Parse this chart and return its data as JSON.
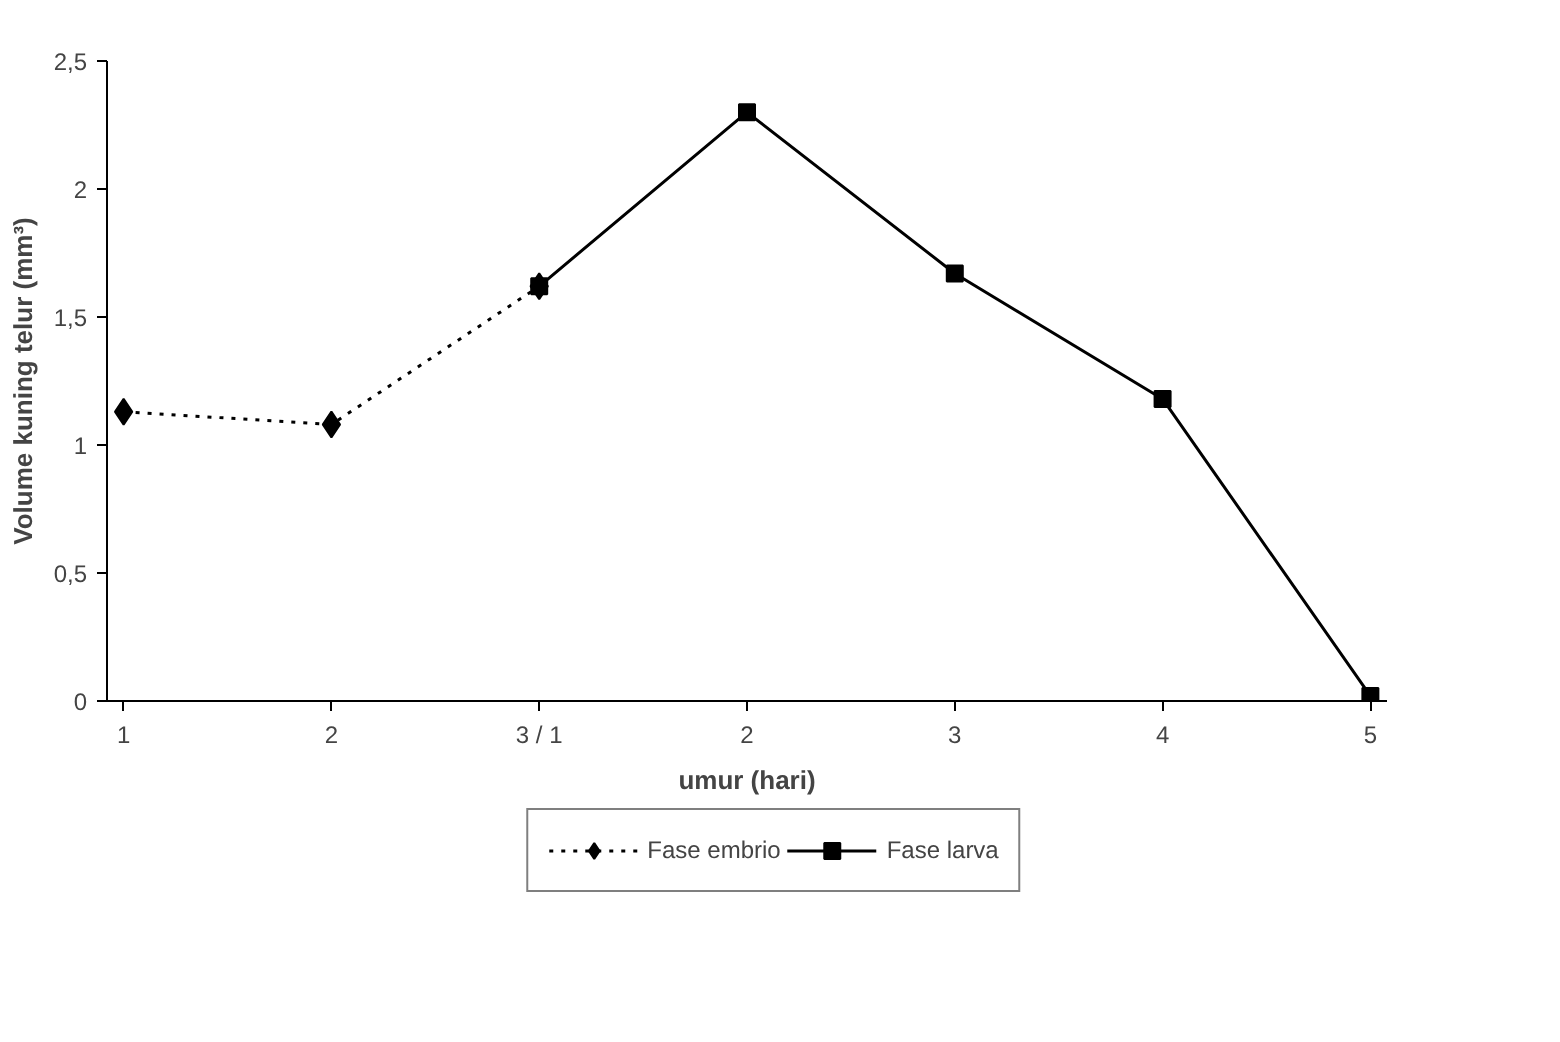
{
  "chart_data": {
    "type": "line",
    "xlabel": "umur (hari)",
    "ylabel": "Volume kuning telur (mm³)",
    "categories": [
      "1",
      "2",
      "3 / 1",
      "2",
      "3",
      "4",
      "5"
    ],
    "series": [
      {
        "name": "Fase embrio",
        "color": "#000000",
        "marker": "diamond",
        "line_style": "dotted",
        "values": [
          1.13,
          1.08,
          1.62,
          null,
          null,
          null,
          null
        ]
      },
      {
        "name": "Fase larva",
        "color": "#000000",
        "marker": "square",
        "line_style": "solid",
        "values": [
          null,
          null,
          1.62,
          2.3,
          1.67,
          1.18,
          0.02
        ]
      }
    ],
    "ylim": [
      0,
      2.5
    ],
    "yticks": [
      0,
      {
        "value": 0.5,
        "label": "0,5"
      },
      1,
      {
        "value": 1.5,
        "label": "1,5"
      },
      2,
      {
        "value": 2.5,
        "label": "2,5"
      }
    ],
    "grid": false,
    "legend": "bottom"
  }
}
